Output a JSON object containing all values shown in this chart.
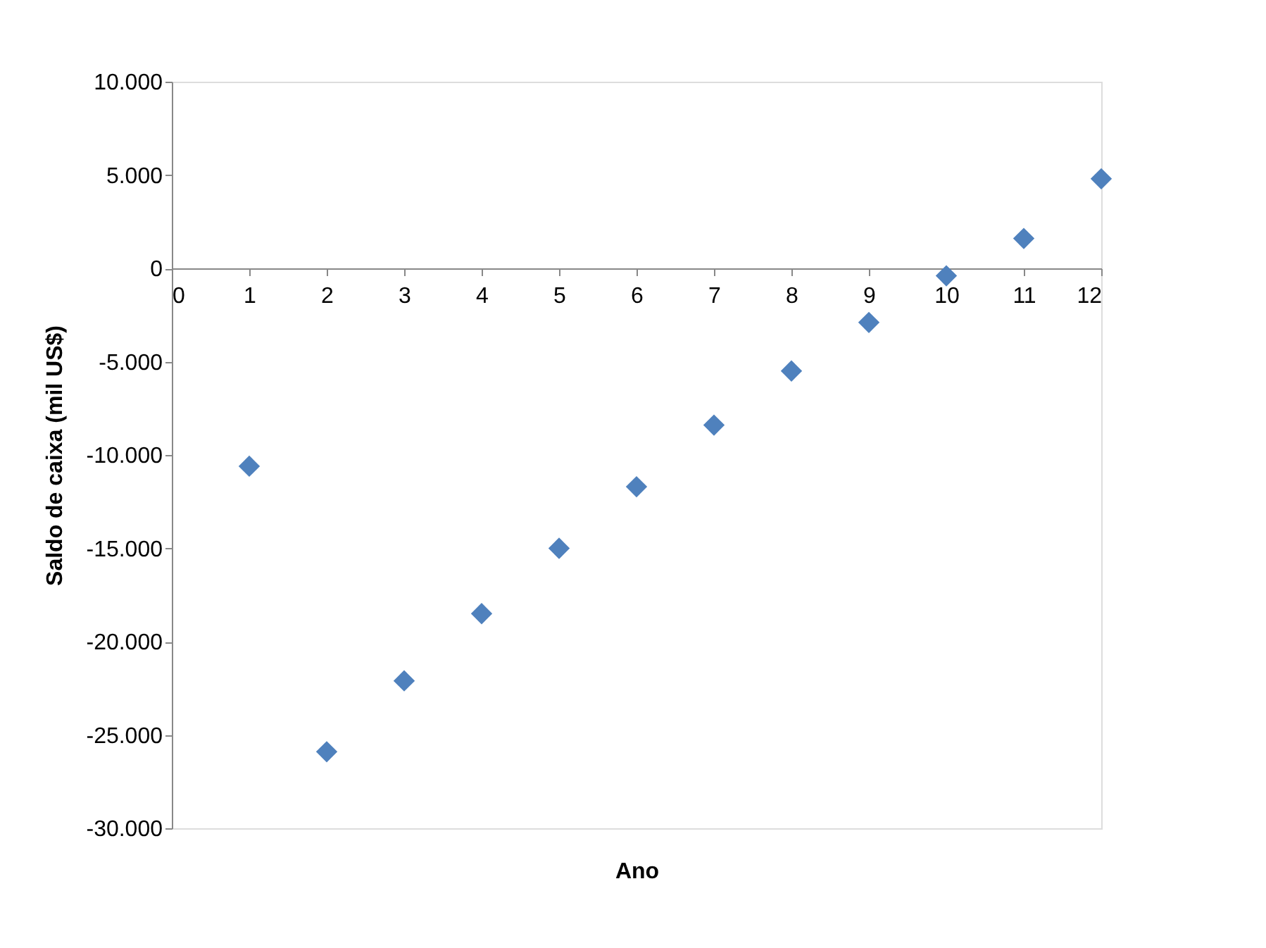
{
  "chart_data": {
    "type": "scatter",
    "xlabel": "Ano",
    "ylabel": "Saldo de caixa (mil US$)",
    "x": [
      1,
      2,
      3,
      4,
      5,
      6,
      7,
      8,
      9,
      10,
      11,
      12
    ],
    "series": [
      {
        "color": "#4f81bd",
        "values": [
          -10600,
          -25900,
          -22100,
          -18500,
          -15000,
          -11700,
          -8400,
          -5500,
          -2900,
          -400,
          1600,
          4800
        ]
      }
    ],
    "xlim": [
      0,
      12
    ],
    "xticks": [
      0,
      1,
      2,
      3,
      4,
      5,
      6,
      7,
      8,
      9,
      10,
      11,
      12
    ],
    "ylim": [
      -30000,
      10000
    ],
    "yticks": [
      {
        "value": -30000,
        "label": "-30.000"
      },
      {
        "value": -25000,
        "label": "-25.000"
      },
      {
        "value": -20000,
        "label": "-20.000"
      },
      {
        "value": -15000,
        "label": "-15.000"
      },
      {
        "value": -10000,
        "label": "-10.000"
      },
      {
        "value": -5000,
        "label": "-5.000"
      },
      {
        "value": 0,
        "label": "0"
      },
      {
        "value": 5000,
        "label": "5.000"
      },
      {
        "value": 10000,
        "label": "10.000"
      }
    ],
    "grid": false,
    "marker": "diamond"
  }
}
